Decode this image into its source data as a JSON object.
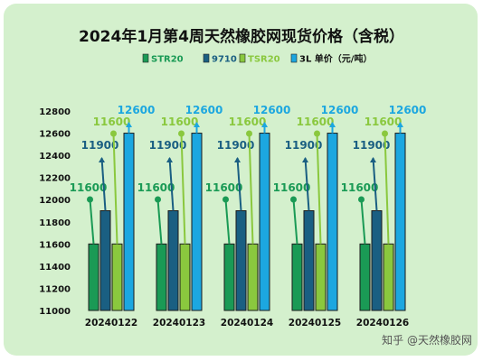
{
  "chart_data": {
    "type": "bar",
    "title": "2024年1月第4周天然橡胶网现货价格（含税）",
    "categories": [
      "20240122",
      "20240123",
      "20240124",
      "20240125",
      "20240126"
    ],
    "series": [
      {
        "name": "STR20",
        "values": [
          11600,
          11600,
          11600,
          11600,
          11600
        ],
        "color": "#1a9a55"
      },
      {
        "name": "9710",
        "values": [
          11900,
          11900,
          11900,
          11900,
          11900
        ],
        "color": "#1a5f82"
      },
      {
        "name": "TSR20",
        "values": [
          11600,
          11600,
          11600,
          11600,
          11600
        ],
        "color": "#8ac83e"
      },
      {
        "name": "3L 单价（元/吨）",
        "values": [
          12600,
          12600,
          12600,
          12600,
          12600
        ],
        "color": "#1ca7e0"
      }
    ],
    "ylim": [
      11000,
      12800
    ],
    "yticks": [
      11000,
      11200,
      11400,
      11600,
      11800,
      12000,
      12200,
      12400,
      12600,
      12800
    ],
    "legend": "top",
    "grid": false
  },
  "watermark": "知乎 @天然橡胶网"
}
